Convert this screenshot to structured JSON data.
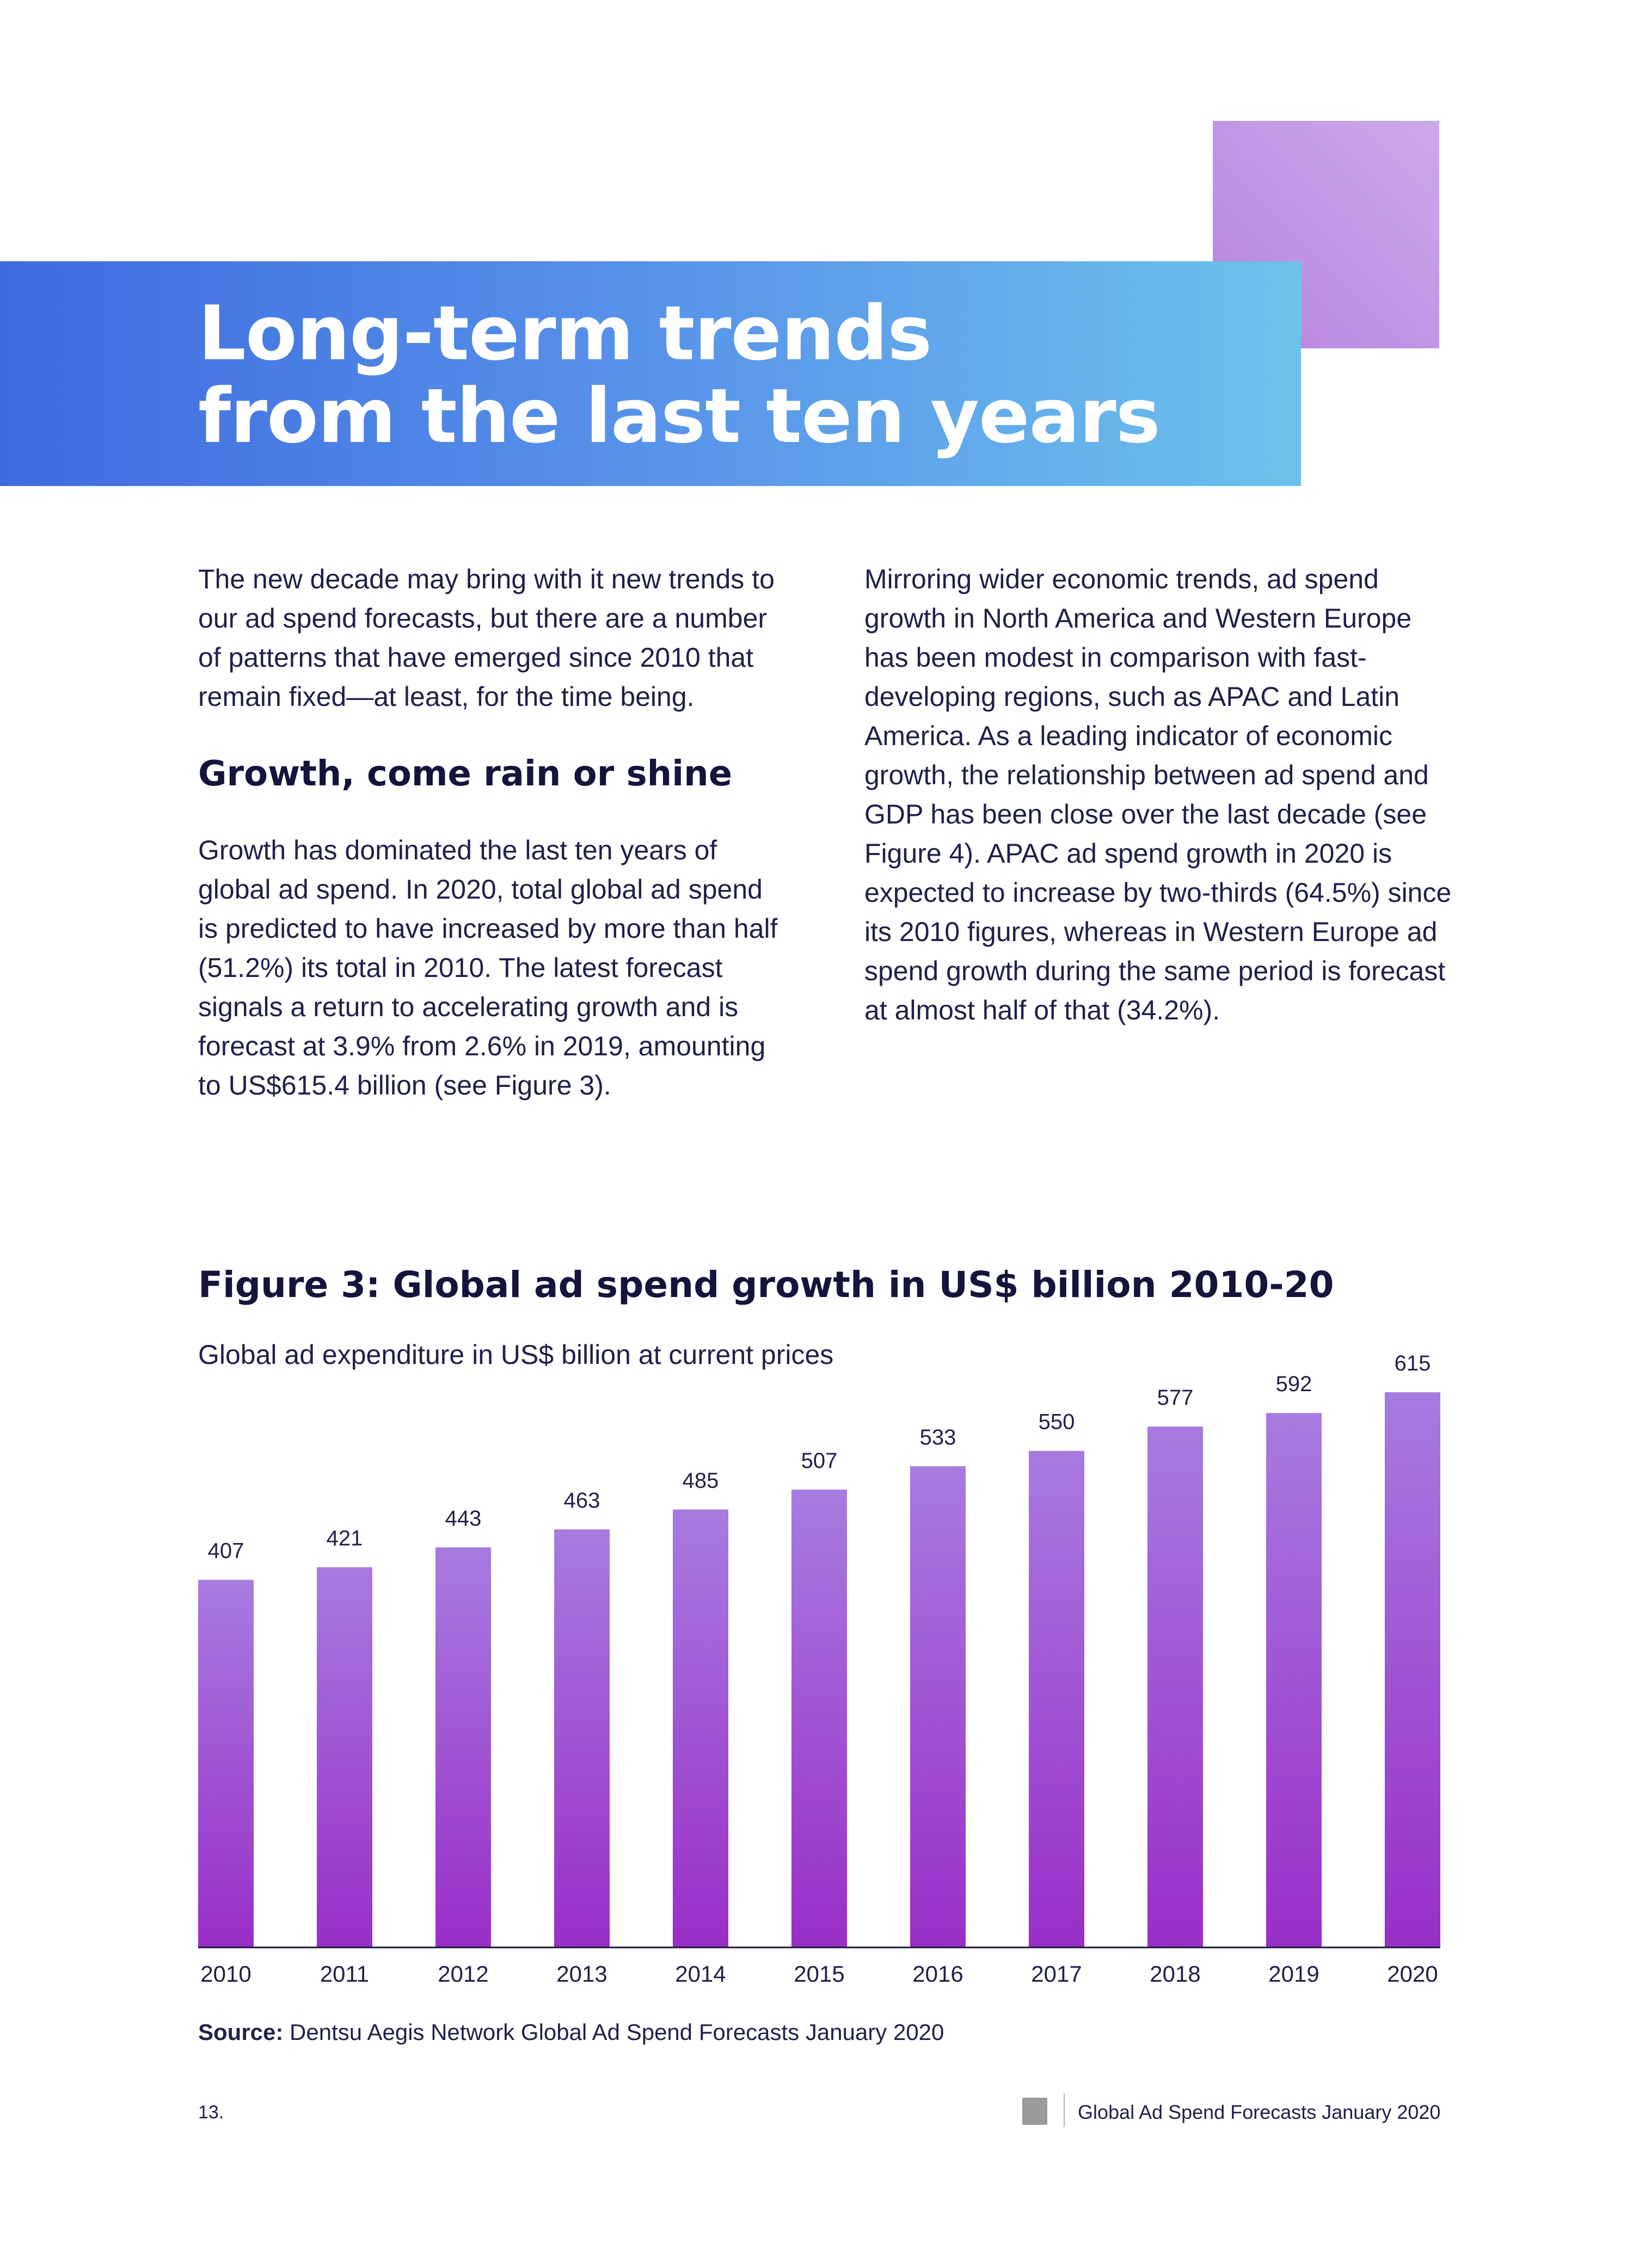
{
  "header": {
    "title_line1": "Long-term trends",
    "title_line2": "from the last ten years"
  },
  "left_column": {
    "intro": "The new decade may bring with it new trends to our ad spend forecasts, but there are a number of patterns that have emerged since 2010 that remain fixed—at least, for the time being.",
    "subheading": "Growth, come rain or shine",
    "body": "Growth has dominated the last ten years of global ad spend. In 2020, total global ad spend is predicted to have increased by more than half (51.2%) its total in 2010. The latest forecast signals a return to accelerating growth and is forecast at 3.9% from 2.6% in 2019, amounting to US$615.4 billion (see Figure 3)."
  },
  "right_column": {
    "body": "Mirroring wider economic trends, ad spend growth in North America and Western Europe has been modest in comparison with fast-developing regions, such as APAC and Latin America. As a leading indicator of economic growth, the relationship between ad spend and GDP has been close over the last decade (see Figure 4). APAC ad spend growth in 2020 is expected to increase by two-thirds (64.5%) since its 2010 figures, whereas in Western Europe ad spend growth during the same period is forecast at almost half of that (34.2%)."
  },
  "figure": {
    "title": "Figure 3: Global ad spend growth in US$ billion 2010-20",
    "subtitle": "Global ad expenditure in US$ billion at current prices"
  },
  "chart_data": {
    "type": "bar",
    "title": "Figure 3: Global ad spend growth in US$ billion 2010-20",
    "subtitle": "Global ad expenditure in US$ billion at current prices",
    "categories": [
      "2010",
      "2011",
      "2012",
      "2013",
      "2014",
      "2015",
      "2016",
      "2017",
      "2018",
      "2019",
      "2020"
    ],
    "values": [
      407,
      421,
      443,
      463,
      485,
      507,
      533,
      550,
      577,
      592,
      615
    ],
    "xlabel": "",
    "ylabel": "",
    "ylim": [
      0,
      615
    ],
    "grid": false,
    "legend": "none",
    "colors": {
      "bar_top": "#a77be0",
      "bar_bottom": "#9a2ec8",
      "axis": "#1a1a3a",
      "label": "#20204a"
    }
  },
  "source": {
    "label": "Source:",
    "text": "Dentsu Aegis Network Global Ad Spend Forecasts January 2020"
  },
  "footer": {
    "page_number": "13.",
    "document_title": "Global Ad Spend Forecasts January 2020"
  }
}
